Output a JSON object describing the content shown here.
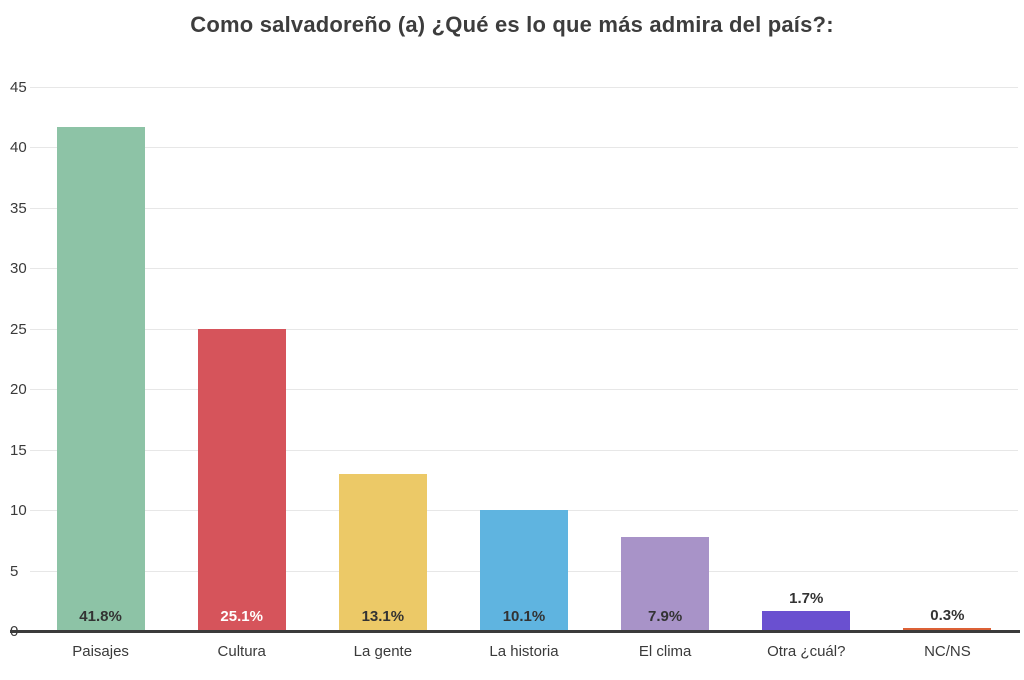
{
  "title": "Como salvadoreño (a) ¿Qué es lo que más admira del país?:",
  "chart_data": {
    "type": "bar",
    "title": "Como salvadoreño (a) ¿Qué es lo que más admira del país?:",
    "categories": [
      "Paisajes",
      "Cultura",
      "La gente",
      "La historia",
      "El clima",
      "Otra ¿cuál?",
      "NC/NS"
    ],
    "values": [
      41.8,
      25.1,
      13.1,
      10.1,
      7.9,
      1.7,
      0.3
    ],
    "value_labels": [
      "41.8%",
      "25.1%",
      "13.1%",
      "10.1%",
      "7.9%",
      "1.7%",
      "0.3%"
    ],
    "bar_colors": [
      "#8dc3a6",
      "#d6545b",
      "#ecc967",
      "#5fb4e0",
      "#a893c8",
      "#6a50d0",
      "#dc6136"
    ],
    "value_label_colors": [
      "#333333",
      "#ffffff",
      "#333333",
      "#333333",
      "#333333",
      "#333333",
      "#333333"
    ],
    "value_label_placement": [
      "inside",
      "inside",
      "inside",
      "inside",
      "inside",
      "above",
      "above"
    ],
    "xlabel": "",
    "ylabel": "",
    "ylim": [
      0,
      45
    ],
    "yticks": [
      0,
      5,
      10,
      15,
      20,
      25,
      30,
      35,
      40,
      45
    ],
    "grid": true,
    "legend": "none"
  },
  "colors": {
    "background": "#ffffff",
    "grid": "#e7e7e7",
    "axis_line": "#3b3b3b",
    "title_text": "#3d3d3d",
    "tick_text": "#3a3a3a",
    "category_text": "#3a3a3a"
  }
}
